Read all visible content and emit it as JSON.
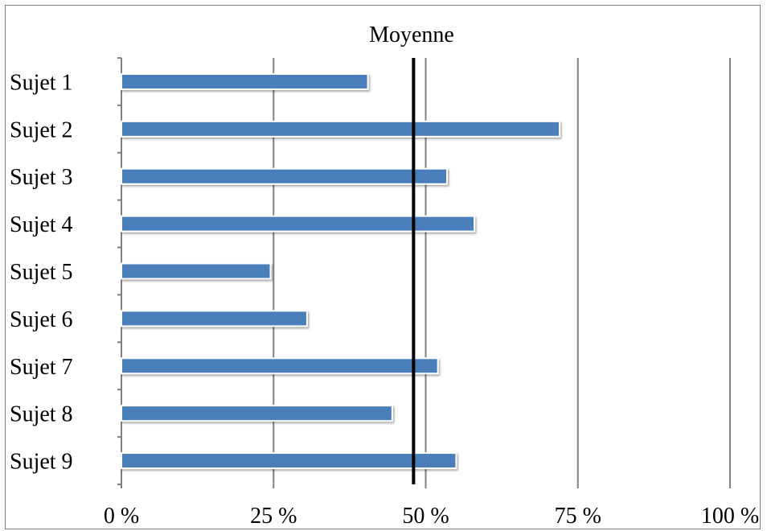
{
  "chart_data": {
    "type": "bar",
    "orientation": "horizontal",
    "title": "Moyenne",
    "categories": [
      "Sujet 1",
      "Sujet 2",
      "Sujet 3",
      "Sujet 4",
      "Sujet 5",
      "Sujet 6",
      "Sujet 7",
      "Sujet 8",
      "Sujet 9"
    ],
    "values": [
      40.5,
      72,
      53.5,
      58,
      24.5,
      30.5,
      52,
      44.5,
      55
    ],
    "reference_line": 48,
    "xlim": [
      0,
      100
    ],
    "x_ticks": [
      0,
      25,
      50,
      75,
      100
    ],
    "x_tick_labels": [
      "0 %",
      "25 %",
      "50 %",
      "75 %",
      "100 %"
    ],
    "grid": "vertical",
    "bar_color": "#4a7ebb",
    "reference_line_color": "#000000",
    "gridline_color": "#808080"
  }
}
